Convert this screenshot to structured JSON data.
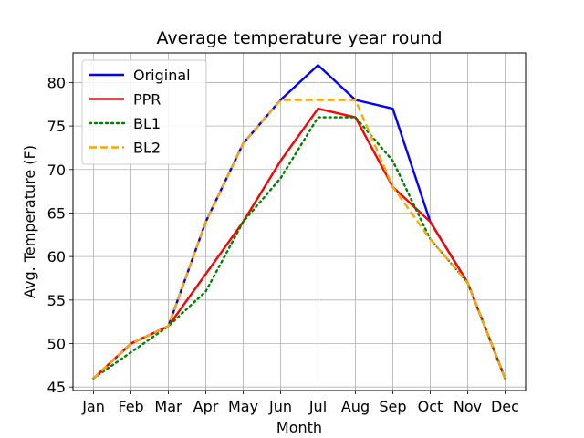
{
  "chart_data": {
    "type": "line",
    "title": "Average temperature year round",
    "xlabel": "Month",
    "ylabel": "Avg. Temperature (F)",
    "categories": [
      "Jan",
      "Feb",
      "Mar",
      "Apr",
      "May",
      "Jun",
      "Jul",
      "Aug",
      "Sep",
      "Oct",
      "Nov",
      "Dec"
    ],
    "ylim": [
      44.6,
      83.4
    ],
    "yticks": [
      45,
      50,
      55,
      60,
      65,
      70,
      75,
      80
    ],
    "grid": true,
    "legend_position": "top-left",
    "series": [
      {
        "name": "Original",
        "color": "#0000ff",
        "style": "solid",
        "values": [
          46,
          50,
          52,
          64,
          73,
          78,
          82,
          78,
          77,
          64,
          57,
          46
        ]
      },
      {
        "name": "PPR",
        "color": "#ff0000",
        "style": "solid",
        "values": [
          46,
          50,
          52,
          58,
          64,
          71,
          77,
          76,
          68,
          64,
          57,
          46
        ]
      },
      {
        "name": "BL1",
        "color": "#008000",
        "style": "dotted",
        "values": [
          46,
          49,
          52,
          56,
          64,
          69,
          76,
          76,
          71,
          62,
          57,
          46
        ]
      },
      {
        "name": "BL2",
        "color": "#ffa500",
        "style": "dashed",
        "values": [
          46,
          50,
          52,
          64,
          73,
          78,
          78,
          78,
          68,
          62,
          57,
          46
        ]
      }
    ]
  }
}
